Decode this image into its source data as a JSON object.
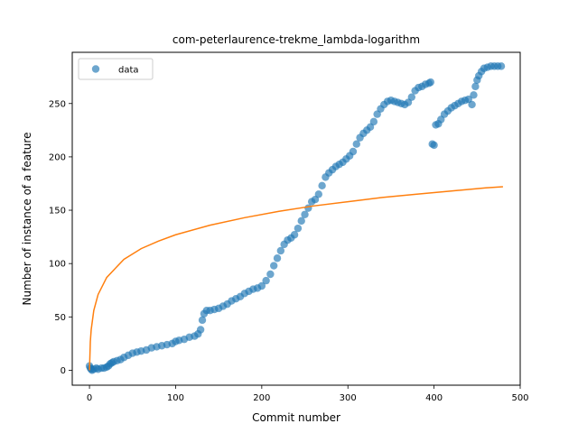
{
  "chart_data": {
    "type": "scatter",
    "title": "com-peterlaurence-trekme_lambda-logarithm",
    "xlabel": "Commit number",
    "ylabel": "Number of instance of a feature",
    "xlim": [
      -20,
      500
    ],
    "ylim": [
      -14,
      298
    ],
    "xticks": [
      0,
      100,
      200,
      300,
      400,
      500
    ],
    "yticks": [
      0,
      50,
      100,
      150,
      200,
      250
    ],
    "grid": false,
    "legend": {
      "placement": "top-left",
      "entries": [
        "data"
      ]
    },
    "colors": {
      "data": "#1f77b4",
      "fit": "#ff7f0e"
    },
    "series": [
      {
        "name": "data",
        "kind": "scatter",
        "points": [
          [
            0,
            4
          ],
          [
            1,
            2
          ],
          [
            2,
            1
          ],
          [
            3,
            0
          ],
          [
            5,
            1
          ],
          [
            8,
            2
          ],
          [
            10,
            1
          ],
          [
            14,
            2
          ],
          [
            17,
            2
          ],
          [
            20,
            3
          ],
          [
            22,
            4
          ],
          [
            24,
            6
          ],
          [
            26,
            7
          ],
          [
            28,
            8
          ],
          [
            32,
            9
          ],
          [
            36,
            10
          ],
          [
            40,
            12
          ],
          [
            45,
            14
          ],
          [
            50,
            16
          ],
          [
            55,
            17
          ],
          [
            60,
            18
          ],
          [
            66,
            19
          ],
          [
            72,
            21
          ],
          [
            78,
            22
          ],
          [
            84,
            23
          ],
          [
            90,
            24
          ],
          [
            96,
            25
          ],
          [
            100,
            27
          ],
          [
            104,
            28
          ],
          [
            110,
            29
          ],
          [
            116,
            31
          ],
          [
            122,
            32
          ],
          [
            126,
            34
          ],
          [
            129,
            38
          ],
          [
            131,
            47
          ],
          [
            133,
            53
          ],
          [
            136,
            56
          ],
          [
            140,
            56
          ],
          [
            145,
            57
          ],
          [
            150,
            58
          ],
          [
            155,
            60
          ],
          [
            160,
            62
          ],
          [
            165,
            65
          ],
          [
            170,
            67
          ],
          [
            175,
            69
          ],
          [
            180,
            72
          ],
          [
            185,
            74
          ],
          [
            190,
            76
          ],
          [
            195,
            77
          ],
          [
            200,
            79
          ],
          [
            205,
            84
          ],
          [
            210,
            90
          ],
          [
            214,
            98
          ],
          [
            218,
            105
          ],
          [
            222,
            112
          ],
          [
            226,
            118
          ],
          [
            230,
            122
          ],
          [
            234,
            124
          ],
          [
            238,
            127
          ],
          [
            242,
            133
          ],
          [
            246,
            140
          ],
          [
            250,
            146
          ],
          [
            254,
            152
          ],
          [
            258,
            158
          ],
          [
            262,
            160
          ],
          [
            266,
            165
          ],
          [
            270,
            173
          ],
          [
            274,
            181
          ],
          [
            278,
            185
          ],
          [
            282,
            188
          ],
          [
            286,
            191
          ],
          [
            290,
            193
          ],
          [
            294,
            195
          ],
          [
            298,
            198
          ],
          [
            302,
            201
          ],
          [
            306,
            205
          ],
          [
            310,
            212
          ],
          [
            314,
            218
          ],
          [
            318,
            222
          ],
          [
            322,
            225
          ],
          [
            326,
            228
          ],
          [
            330,
            233
          ],
          [
            334,
            240
          ],
          [
            338,
            245
          ],
          [
            342,
            249
          ],
          [
            346,
            252
          ],
          [
            350,
            253
          ],
          [
            354,
            252
          ],
          [
            358,
            251
          ],
          [
            362,
            250
          ],
          [
            366,
            249
          ],
          [
            370,
            251
          ],
          [
            374,
            256
          ],
          [
            378,
            262
          ],
          [
            382,
            265
          ],
          [
            386,
            266
          ],
          [
            390,
            268
          ],
          [
            394,
            269
          ],
          [
            396,
            270
          ],
          [
            398,
            212
          ],
          [
            400,
            211
          ],
          [
            402,
            230
          ],
          [
            405,
            231
          ],
          [
            408,
            235
          ],
          [
            412,
            240
          ],
          [
            416,
            243
          ],
          [
            420,
            246
          ],
          [
            424,
            248
          ],
          [
            428,
            250
          ],
          [
            432,
            252
          ],
          [
            436,
            253
          ],
          [
            440,
            254
          ],
          [
            444,
            249
          ],
          [
            446,
            258
          ],
          [
            448,
            266
          ],
          [
            450,
            272
          ],
          [
            452,
            276
          ],
          [
            455,
            280
          ],
          [
            458,
            283
          ],
          [
            462,
            284
          ],
          [
            466,
            285
          ],
          [
            470,
            285
          ],
          [
            474,
            285
          ],
          [
            478,
            285
          ]
        ]
      },
      {
        "kind": "line",
        "model": "logarithmic fit",
        "points": [
          [
            0,
            0
          ],
          [
            1,
            27
          ],
          [
            2,
            38
          ],
          [
            5,
            56
          ],
          [
            10,
            71
          ],
          [
            20,
            87
          ],
          [
            40,
            104
          ],
          [
            60,
            114
          ],
          [
            80,
            121
          ],
          [
            100,
            127
          ],
          [
            140,
            136
          ],
          [
            180,
            143
          ],
          [
            220,
            149
          ],
          [
            260,
            154
          ],
          [
            300,
            158
          ],
          [
            340,
            162
          ],
          [
            380,
            165
          ],
          [
            420,
            168
          ],
          [
            460,
            171
          ],
          [
            480,
            172
          ]
        ]
      }
    ]
  }
}
